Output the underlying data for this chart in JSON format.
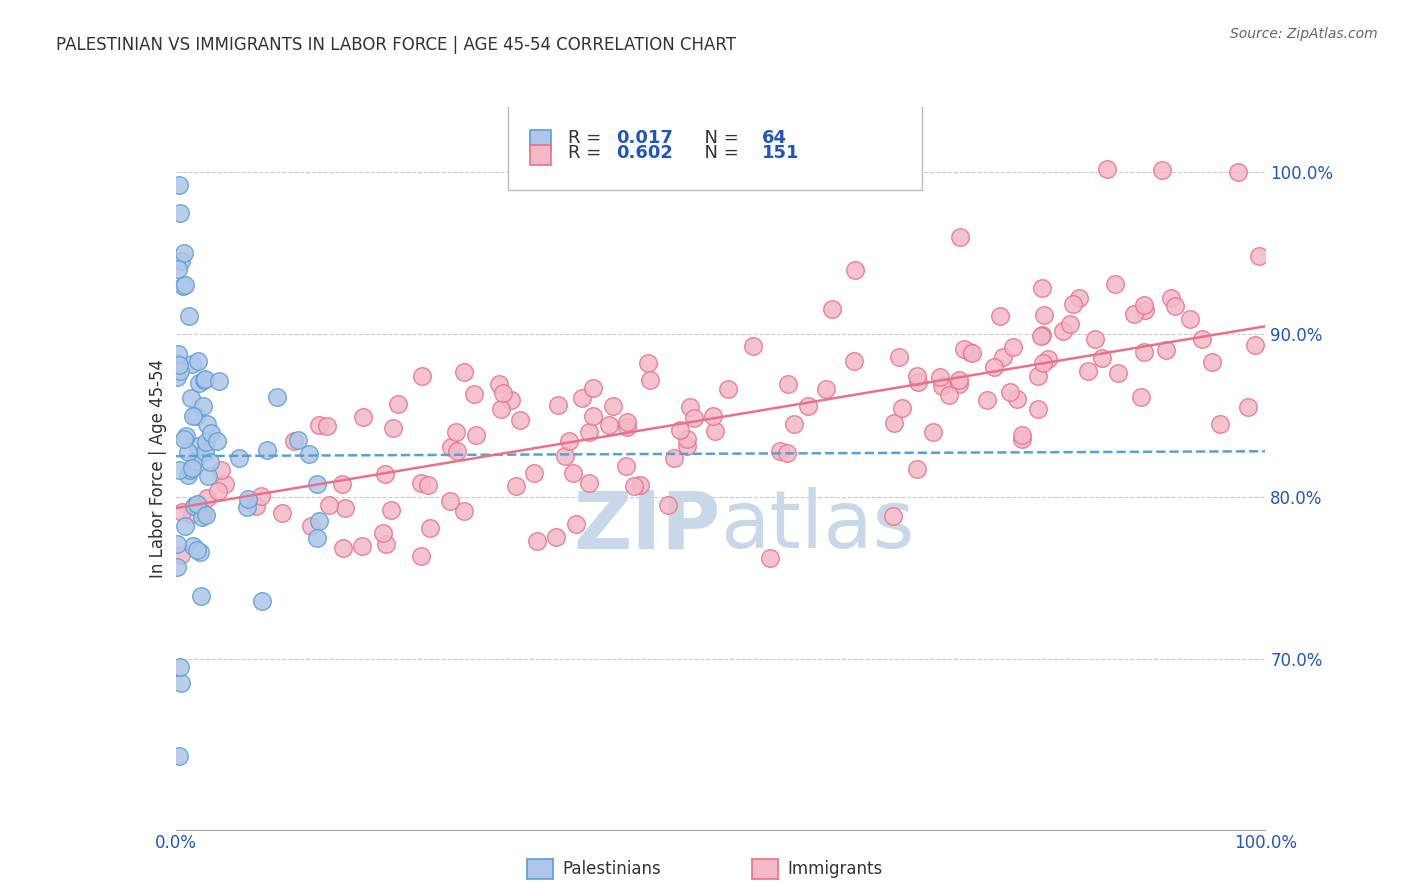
{
  "title": "PALESTINIAN VS IMMIGRANTS IN LABOR FORCE | AGE 45-54 CORRELATION CHART",
  "source": "Source: ZipAtlas.com",
  "ylabel": "In Labor Force | Age 45-54",
  "xlim": [
    0.0,
    1.0
  ],
  "ylim": [
    0.595,
    1.04
  ],
  "yticks_right": [
    0.7,
    0.8,
    0.9,
    1.0
  ],
  "ytick_right_labels": [
    "70.0%",
    "80.0%",
    "90.0%",
    "100.0%"
  ],
  "palestinians_R": "0.017",
  "palestinians_N": "64",
  "immigrants_R": "0.602",
  "immigrants_N": "151",
  "palestinians_color": "#aec6e8",
  "palestinians_edge_color": "#5a9fd4",
  "immigrants_color": "#f4b8c8",
  "immigrants_edge_color": "#e8728a",
  "trend_blue_color": "#5a9fd4",
  "trend_pink_color": "#e8728a",
  "watermark_color": "#c8d8e8",
  "legend_color": "#2255bb",
  "pal_trend_x0": 0.0,
  "pal_trend_x1": 1.0,
  "pal_trend_y0": 0.825,
  "pal_trend_y1": 0.828,
  "imm_trend_x0": 0.0,
  "imm_trend_x1": 1.0,
  "imm_trend_y0": 0.793,
  "imm_trend_y1": 0.905
}
